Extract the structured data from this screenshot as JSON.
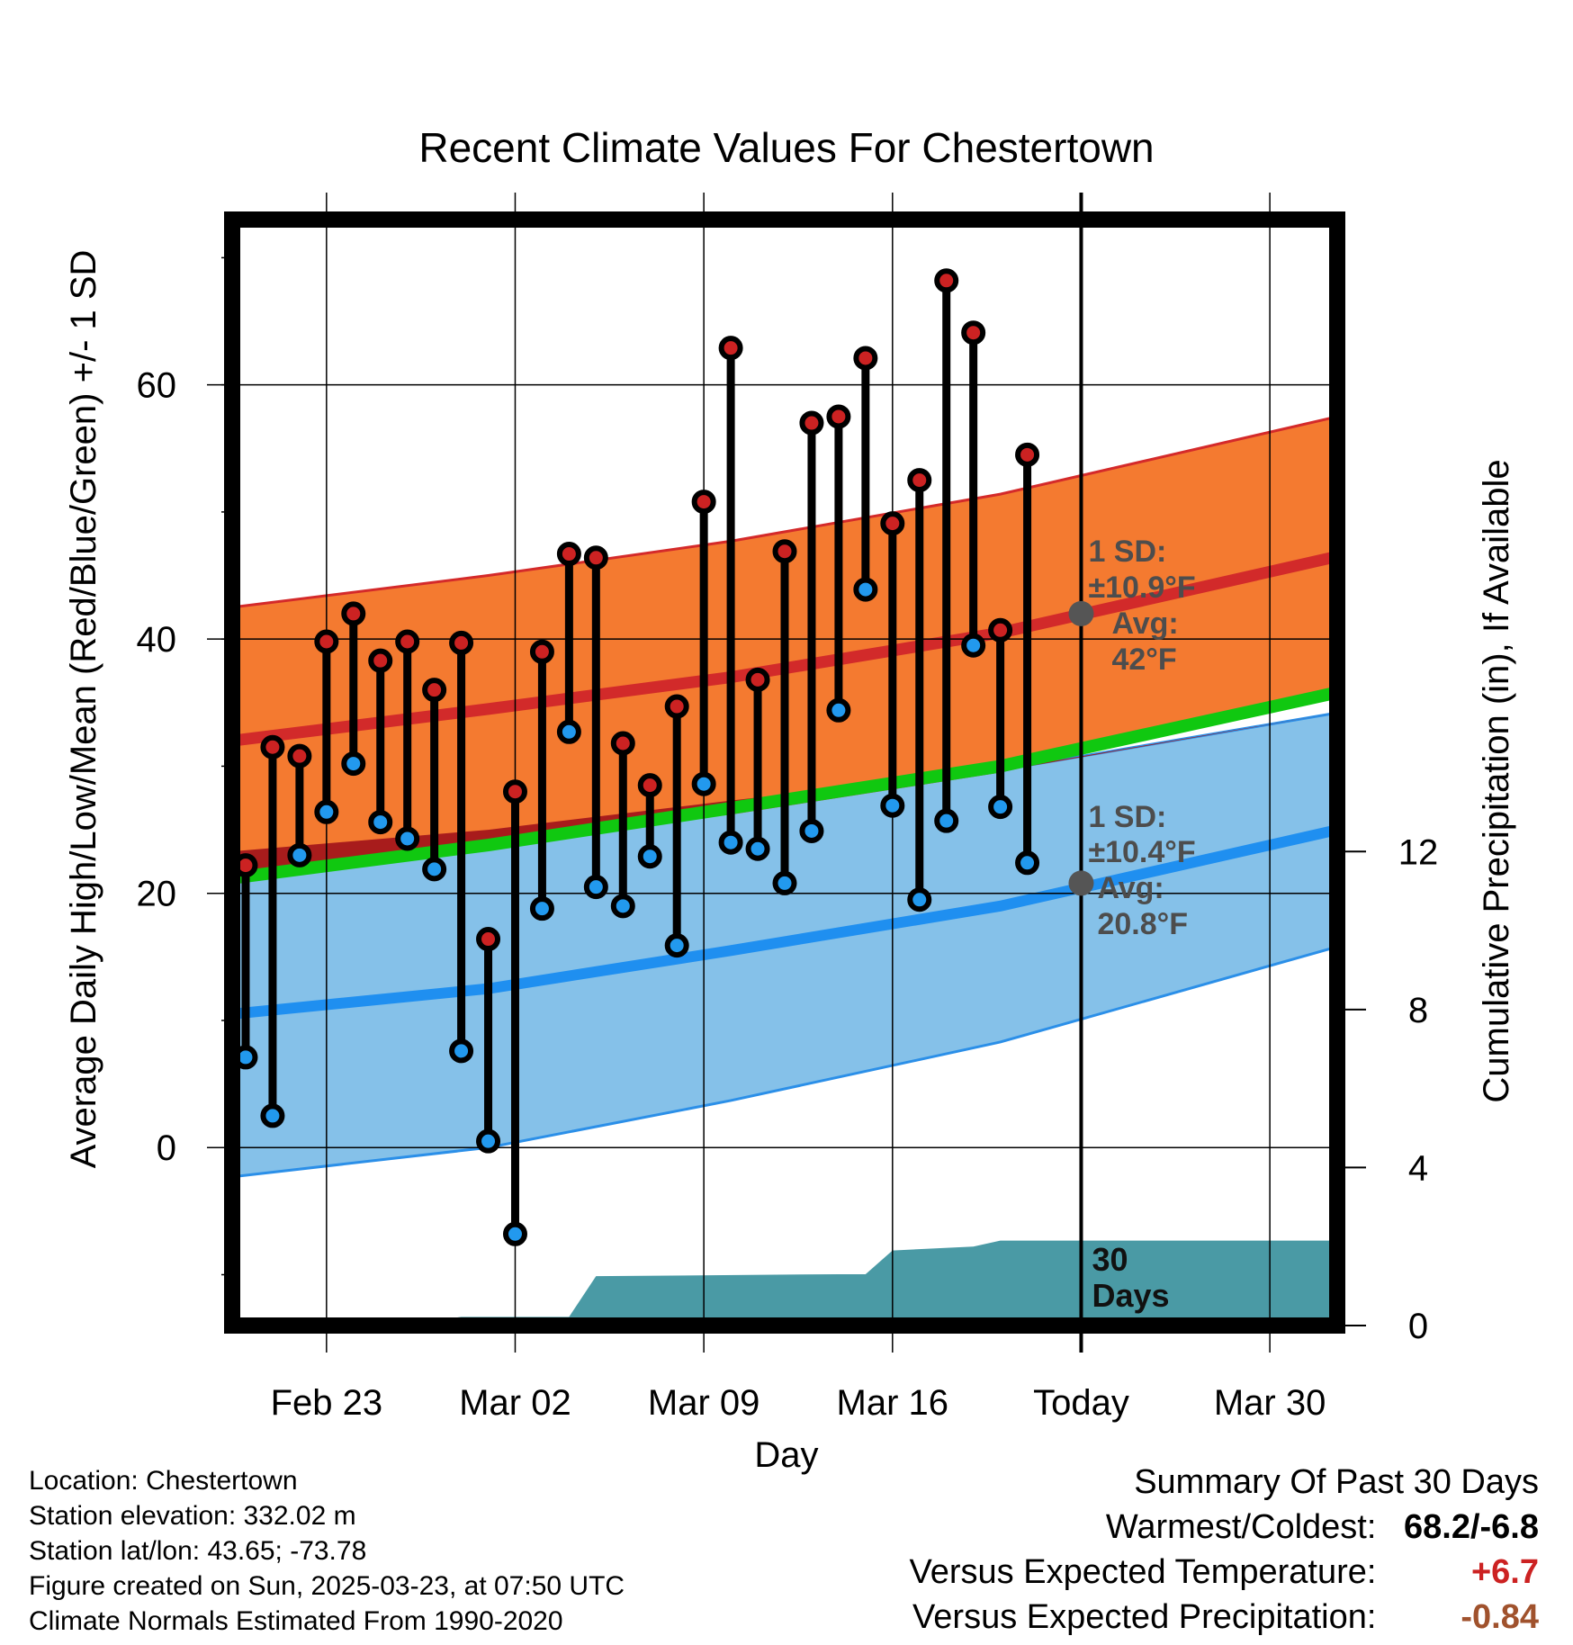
{
  "chart_data": {
    "type": "line",
    "title": "Recent Climate Values For Chestertown",
    "xlabel": "Day",
    "ylabel": "Average Daily High/Low/Mean (Red/Blue/Green) +/- 1 SD",
    "ylabel_right": "Cumulative Precipitation (in), If Available",
    "x_ticks": [
      "Feb 23",
      "Mar 02",
      "Mar 09",
      "Mar 16",
      "Today",
      "Mar 30"
    ],
    "x_range": [
      "2025-02-19 12:00",
      "2025-04-01 12:00"
    ],
    "today": "2025-03-23",
    "ylim": [
      -14,
      73
    ],
    "y_ticks": [
      0,
      20,
      40,
      60
    ],
    "precip_ylim": [
      0,
      28
    ],
    "precip_ticks": [
      0,
      4,
      8,
      12
    ],
    "grid": true,
    "dates": [
      "2025-02-20",
      "2025-02-21",
      "2025-02-22",
      "2025-02-23",
      "2025-02-24",
      "2025-02-25",
      "2025-02-26",
      "2025-02-27",
      "2025-02-28",
      "2025-03-01",
      "2025-03-02",
      "2025-03-03",
      "2025-03-04",
      "2025-03-05",
      "2025-03-06",
      "2025-03-07",
      "2025-03-08",
      "2025-03-09",
      "2025-03-10",
      "2025-03-11",
      "2025-03-12",
      "2025-03-13",
      "2025-03-14",
      "2025-03-15",
      "2025-03-16",
      "2025-03-17",
      "2025-03-18",
      "2025-03-19",
      "2025-03-20",
      "2025-03-21",
      "2025-03-22"
    ],
    "series": [
      {
        "name": "High",
        "color": "#cc2222",
        "values": [
          22.2,
          31.5,
          30.8,
          39.8,
          42,
          38.3,
          39.8,
          36,
          39.7,
          16.4,
          28,
          39,
          46.7,
          46.4,
          31.8,
          28.5,
          34.7,
          50.8,
          62.9,
          36.8,
          46.9,
          57,
          57.5,
          62.1,
          49.1,
          52.5,
          68.2,
          64.1,
          40.7,
          54.5,
          null
        ]
      },
      {
        "name": "Low",
        "color": "#2299ee",
        "values": [
          7.1,
          2.5,
          23,
          26.4,
          30.2,
          25.6,
          24.3,
          21.9,
          7.6,
          0.5,
          -6.8,
          18.8,
          32.7,
          20.5,
          19,
          22.9,
          15.9,
          28.6,
          24,
          23.5,
          20.8,
          24.9,
          34.4,
          43.9,
          26.9,
          19.5,
          25.7,
          39.5,
          26.8,
          22.4,
          null
        ]
      }
    ],
    "normals": {
      "x": [
        "2025-02-19 12:00",
        "2025-03-01",
        "2025-03-10",
        "2025-03-20",
        "2025-04-01 12:00"
      ],
      "high_mean": [
        32.0,
        34.5,
        37.0,
        40.5,
        46.5
      ],
      "high_sd": [
        10.5,
        10.5,
        10.7,
        10.9,
        11.0
      ],
      "low_mean": [
        10.5,
        12.5,
        15.5,
        19.0,
        25.0
      ],
      "low_sd": [
        12.8,
        12.5,
        11.8,
        10.7,
        9.2
      ],
      "mean": [
        21.2,
        23.8,
        26.7,
        30.0,
        35.8
      ]
    },
    "precip_cumulative": {
      "x": [
        "2025-02-19 12:00",
        "2025-02-26",
        "2025-02-27",
        "2025-02-28",
        "2025-03-03",
        "2025-03-04",
        "2025-03-05",
        "2025-03-14",
        "2025-03-15",
        "2025-03-16",
        "2025-03-19",
        "2025-03-20",
        "2025-04-01 12:00"
      ],
      "values": [
        0,
        0,
        0.12,
        0.22,
        0.22,
        0.22,
        1.25,
        1.3,
        1.3,
        1.9,
        2.0,
        2.15,
        2.15
      ]
    },
    "annotations": {
      "high": {
        "sd_label": "1 SD:",
        "sd_value": "±10.9°F",
        "avg_label": "Avg:",
        "avg_value": "42°F",
        "avg": 42
      },
      "low": {
        "sd_label": "1 SD:",
        "sd_value": "±10.4°F",
        "avg_label": "Avg:",
        "avg_value": "20.8°F",
        "avg": 20.8
      },
      "precip_label": [
        "30",
        "Days"
      ]
    }
  },
  "info": {
    "location": "Location: Chestertown",
    "elevation": "Station elevation: 332.02 m",
    "latlon": "Station lat/lon: 43.65; -73.78",
    "created": "Figure created on Sun, 2025-03-23, at 07:50 UTC",
    "normals": "Climate Normals Estimated From 1990-2020"
  },
  "summary": {
    "title": "Summary Of Past 30 Days",
    "warmest_label": "Warmest/Coldest:",
    "warmest_value": "68.2/-6.8",
    "temp_label": "Versus Expected Temperature:",
    "temp_value": "+6.7",
    "temp_color": "#cc2222",
    "precip_label": "Versus Expected Precipitation:",
    "precip_value": "-0.84",
    "precip_color": "#a0522d"
  }
}
